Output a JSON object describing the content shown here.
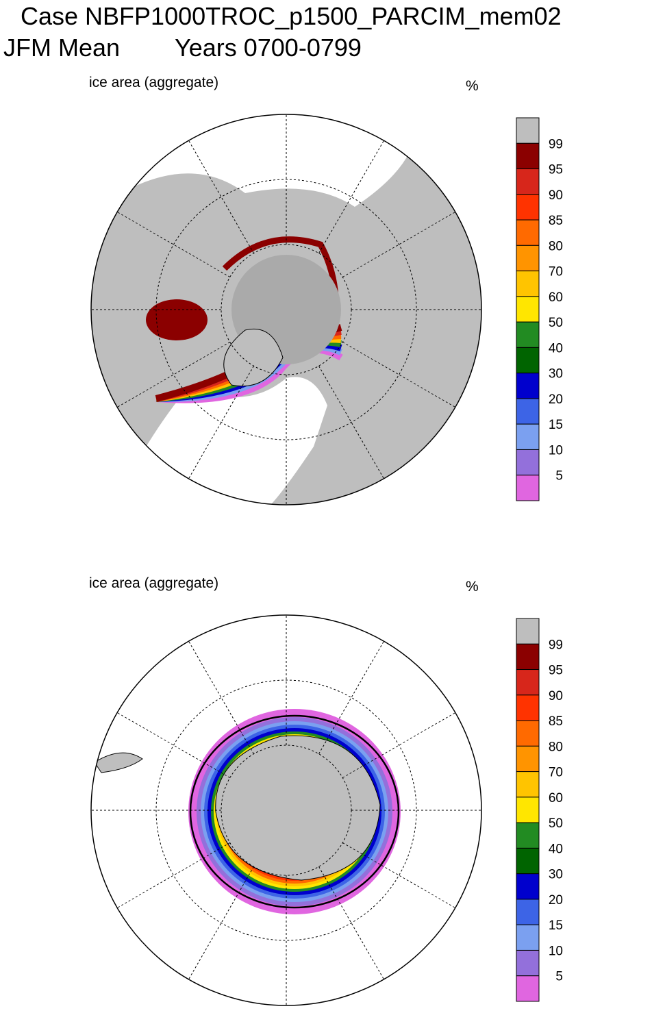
{
  "header": {
    "title": "Case NBFP1000TROC_p1500_PARCIM_mem02",
    "season": "JFM Mean",
    "years": "Years 0700-0799"
  },
  "panels": [
    {
      "label": "ice area  (aggregate)",
      "unit": "%",
      "colorbar": {
        "labels": [
          99,
          95,
          90,
          85,
          80,
          70,
          60,
          50,
          40,
          30,
          20,
          15,
          10,
          5
        ],
        "colors": [
          "#bebebe",
          "#8b0000",
          "#d7261b",
          "#ff3300",
          "#ff6a00",
          "#ff9400",
          "#ffc400",
          "#ffe600",
          "#228b22",
          "#006400",
          "#0000cd",
          "#3d64e6",
          "#7ba0f0",
          "#9370db",
          "#e066e0"
        ]
      }
    },
    {
      "label": "ice area  (aggregate)",
      "unit": "%",
      "colorbar": {
        "labels": [
          99,
          95,
          90,
          85,
          80,
          70,
          60,
          50,
          40,
          30,
          20,
          15,
          10,
          5
        ],
        "colors": [
          "#bebebe",
          "#8b0000",
          "#d7261b",
          "#ff3300",
          "#ff6a00",
          "#ff9400",
          "#ffc400",
          "#ffe600",
          "#228b22",
          "#006400",
          "#0000cd",
          "#3d64e6",
          "#7ba0f0",
          "#9370db",
          "#e066e0"
        ]
      }
    }
  ]
}
